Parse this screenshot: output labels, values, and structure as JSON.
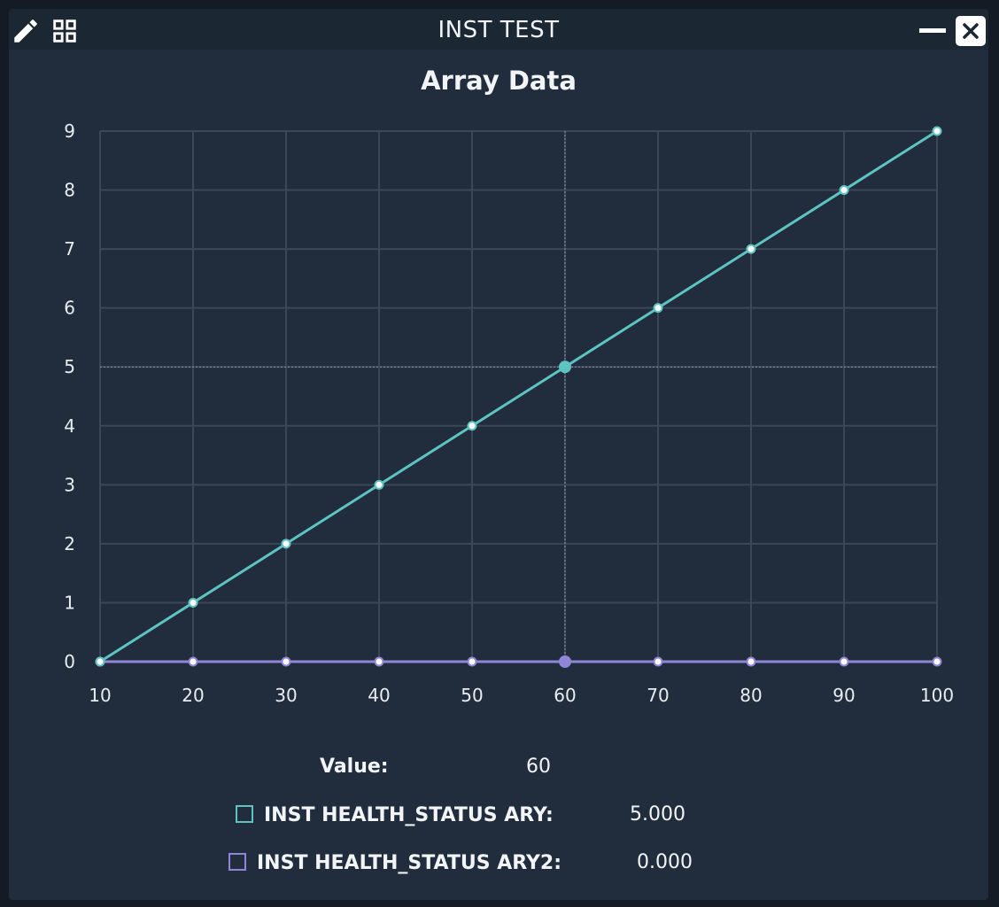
{
  "window": {
    "title": "INST TEST",
    "icons": [
      "edit-icon",
      "grid-icon",
      "minimize-icon",
      "close-icon"
    ]
  },
  "chart_data": {
    "type": "line",
    "title": "Array Data",
    "xlabel": "",
    "ylabel": "",
    "x": [
      10,
      20,
      30,
      40,
      50,
      60,
      70,
      80,
      90,
      100
    ],
    "xlim": [
      10,
      100
    ],
    "ylim": [
      0,
      9
    ],
    "x_ticks": [
      "10",
      "20",
      "30",
      "40",
      "50",
      "60",
      "70",
      "80",
      "90",
      "100"
    ],
    "y_ticks": [
      "0",
      "1",
      "2",
      "3",
      "4",
      "5",
      "6",
      "7",
      "8",
      "9"
    ],
    "grid": true,
    "series": [
      {
        "name": "INST HEALTH_STATUS ARY",
        "color": "#5ec3c3",
        "values": [
          0,
          1,
          2,
          3,
          4,
          5,
          6,
          7,
          8,
          9
        ]
      },
      {
        "name": "INST HEALTH_STATUS ARY2",
        "color": "#8f86d8",
        "values": [
          0,
          0,
          0,
          0,
          0,
          0,
          0,
          0,
          0,
          0
        ]
      }
    ],
    "cursor": {
      "x": 60
    }
  },
  "readout": {
    "value_label": "Value:",
    "value": "60",
    "series": [
      {
        "label": "INST HEALTH_STATUS ARY:",
        "value": "5.000",
        "color": "#5ec3c3"
      },
      {
        "label": "INST HEALTH_STATUS ARY2:",
        "value": "0.000",
        "color": "#8f86d8"
      }
    ]
  }
}
